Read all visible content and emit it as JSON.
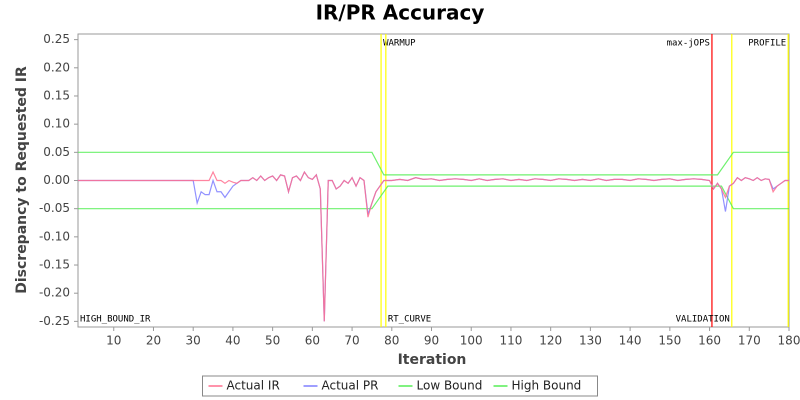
{
  "chart_data": {
    "type": "line",
    "title": "IR/PR Accuracy",
    "x_label": "Iteration",
    "y_label": "Discrepancy to Requested IR",
    "xlim": [
      1,
      180
    ],
    "ylim": [
      -0.26,
      0.26
    ],
    "xticks": [
      10,
      20,
      30,
      40,
      50,
      60,
      70,
      80,
      90,
      100,
      110,
      120,
      130,
      140,
      150,
      160,
      170,
      180
    ],
    "yticks": [
      0.25,
      {
        "value": 0.2,
        "label": "0.20"
      },
      0.15,
      {
        "value": 0.1,
        "label": "0.10"
      },
      0.05,
      {
        "value": 0,
        "label": "0.00"
      },
      -0.05,
      {
        "value": -0.1,
        "label": "-0.10"
      },
      -0.15,
      {
        "value": -0.2,
        "label": "-0.20"
      },
      -0.25
    ],
    "grid": false,
    "legend": "bottom",
    "markers": [
      {
        "x": 1,
        "label": "HIGH_BOUND_IR",
        "align": "start",
        "at": "bottom"
      },
      {
        "x": 77.3,
        "color": "#ffff00",
        "label": "WARMUP",
        "align": "start",
        "at": "top"
      },
      {
        "x": 78.5,
        "color": "#ffff00",
        "label": "RT_CURVE",
        "align": "start",
        "at": "bottom"
      },
      {
        "x": 160.6,
        "color": "#ff0000",
        "label": "max-jOPS",
        "align": "end",
        "at": "top"
      },
      {
        "x": 165.6,
        "color": "#ffff00",
        "label": "VALIDATION",
        "align": "end",
        "at": "bottom"
      },
      {
        "x": 179.8,
        "color": "#ffff00",
        "label": "PROFILE",
        "align": "end",
        "at": "top"
      }
    ],
    "series": [
      {
        "name": "Actual IR",
        "color": "#ff6f8f",
        "x": [
          1,
          30,
          31,
          32,
          33,
          34,
          35,
          36,
          37,
          38,
          39,
          40,
          41,
          42,
          43,
          44,
          45,
          46,
          47,
          48,
          49,
          50,
          51,
          52,
          53,
          54,
          55,
          56,
          57,
          58,
          59,
          60,
          61,
          62,
          63,
          64,
          65,
          66,
          67,
          68,
          69,
          70,
          71,
          72,
          73,
          74,
          75,
          76,
          78,
          80,
          82,
          84,
          86,
          88,
          90,
          92,
          94,
          96,
          98,
          100,
          102,
          104,
          106,
          108,
          110,
          112,
          114,
          116,
          118,
          120,
          122,
          124,
          126,
          128,
          130,
          132,
          134,
          136,
          138,
          140,
          142,
          144,
          146,
          148,
          150,
          152,
          154,
          156,
          158,
          160,
          161,
          162,
          163,
          164,
          165,
          166,
          167,
          168,
          169,
          170,
          171,
          172,
          173,
          174,
          175,
          176,
          177,
          178,
          179,
          180
        ],
        "values": [
          0,
          0,
          0,
          0,
          0,
          0,
          0.015,
          0,
          0,
          -0.005,
          0,
          -0.003,
          -0.005,
          0,
          0,
          0,
          0.005,
          0,
          0.008,
          0,
          0.005,
          0.008,
          0,
          0.01,
          0.008,
          -0.02,
          0.005,
          0.008,
          0,
          0.015,
          0.005,
          0.002,
          0.01,
          -0.015,
          -0.25,
          0,
          0,
          -0.015,
          -0.01,
          0,
          -0.005,
          0.005,
          -0.01,
          0.005,
          0,
          -0.065,
          -0.04,
          -0.02,
          0,
          0,
          0.002,
          0,
          0.005,
          0.002,
          0.003,
          0,
          0.002,
          0.003,
          0.002,
          0,
          0.003,
          0,
          0.002,
          0.003,
          0,
          0.002,
          0,
          0.003,
          0.002,
          0,
          0.003,
          0.002,
          0,
          0.002,
          0,
          0.003,
          0,
          0.002,
          0.002,
          0,
          0.003,
          0.002,
          0,
          0.002,
          0.003,
          0,
          0.002,
          0.003,
          0.002,
          0,
          -0.015,
          -0.005,
          -0.015,
          -0.03,
          -0.01,
          -0.005,
          0.005,
          0,
          0.005,
          0.003,
          0,
          0.005,
          0,
          0.003,
          0.002,
          -0.02,
          -0.01,
          -0.005,
          0,
          0
        ]
      },
      {
        "name": "Actual PR",
        "color": "#7f7fff",
        "x": [
          1,
          30,
          31,
          32,
          33,
          34,
          35,
          36,
          37,
          38,
          39,
          40,
          41,
          42,
          43,
          44,
          45,
          46,
          47,
          48,
          49,
          50,
          51,
          52,
          53,
          54,
          55,
          56,
          57,
          58,
          59,
          60,
          61,
          62,
          63,
          64,
          65,
          66,
          67,
          68,
          69,
          70,
          71,
          72,
          73,
          74,
          75,
          76,
          78,
          80,
          82,
          84,
          86,
          88,
          90,
          92,
          94,
          96,
          98,
          100,
          102,
          104,
          106,
          108,
          110,
          112,
          114,
          116,
          118,
          120,
          122,
          124,
          126,
          128,
          130,
          132,
          134,
          136,
          138,
          140,
          142,
          144,
          146,
          148,
          150,
          152,
          154,
          156,
          158,
          160,
          161,
          162,
          163,
          164,
          165,
          166,
          167,
          168,
          169,
          170,
          171,
          172,
          173,
          174,
          175,
          176,
          177,
          178,
          179,
          180
        ],
        "values": [
          0,
          0,
          -0.04,
          -0.02,
          -0.025,
          -0.025,
          0,
          -0.02,
          -0.02,
          -0.03,
          -0.02,
          -0.01,
          -0.005,
          0,
          0,
          0,
          0.005,
          0,
          0.008,
          0,
          0.005,
          0.008,
          0,
          0.01,
          0.008,
          -0.02,
          0.005,
          0.008,
          0,
          0.015,
          0.005,
          0.002,
          0.01,
          -0.015,
          -0.25,
          0,
          0,
          -0.015,
          -0.01,
          0,
          -0.005,
          0.005,
          -0.01,
          0.005,
          0,
          -0.06,
          -0.04,
          -0.02,
          0,
          0,
          0.002,
          0,
          0.005,
          0.002,
          0.003,
          0,
          0.002,
          0.003,
          0.002,
          0,
          0.003,
          0,
          0.002,
          0.003,
          0,
          0.002,
          0,
          0.003,
          0.002,
          0,
          0.003,
          0.002,
          0,
          0.002,
          0,
          0.003,
          0,
          0.002,
          0.002,
          0,
          0.003,
          0.002,
          0,
          0.002,
          0.003,
          0,
          0.002,
          0.003,
          0.002,
          0,
          -0.015,
          -0.005,
          -0.015,
          -0.055,
          -0.01,
          -0.005,
          0.005,
          0,
          0.005,
          0.003,
          0,
          0.005,
          0,
          0.003,
          0.002,
          -0.015,
          -0.01,
          -0.005,
          0,
          0
        ]
      },
      {
        "name": "Low Bound",
        "color": "#55ee55",
        "x": [
          1,
          75,
          79,
          163,
          166,
          180
        ],
        "values": [
          -0.05,
          -0.05,
          -0.01,
          -0.01,
          -0.05,
          -0.05
        ]
      },
      {
        "name": "High Bound",
        "color": "#55ee55",
        "x": [
          1,
          75,
          78,
          162,
          166,
          180
        ],
        "values": [
          0.05,
          0.05,
          0.01,
          0.01,
          0.05,
          0.05
        ]
      }
    ]
  }
}
